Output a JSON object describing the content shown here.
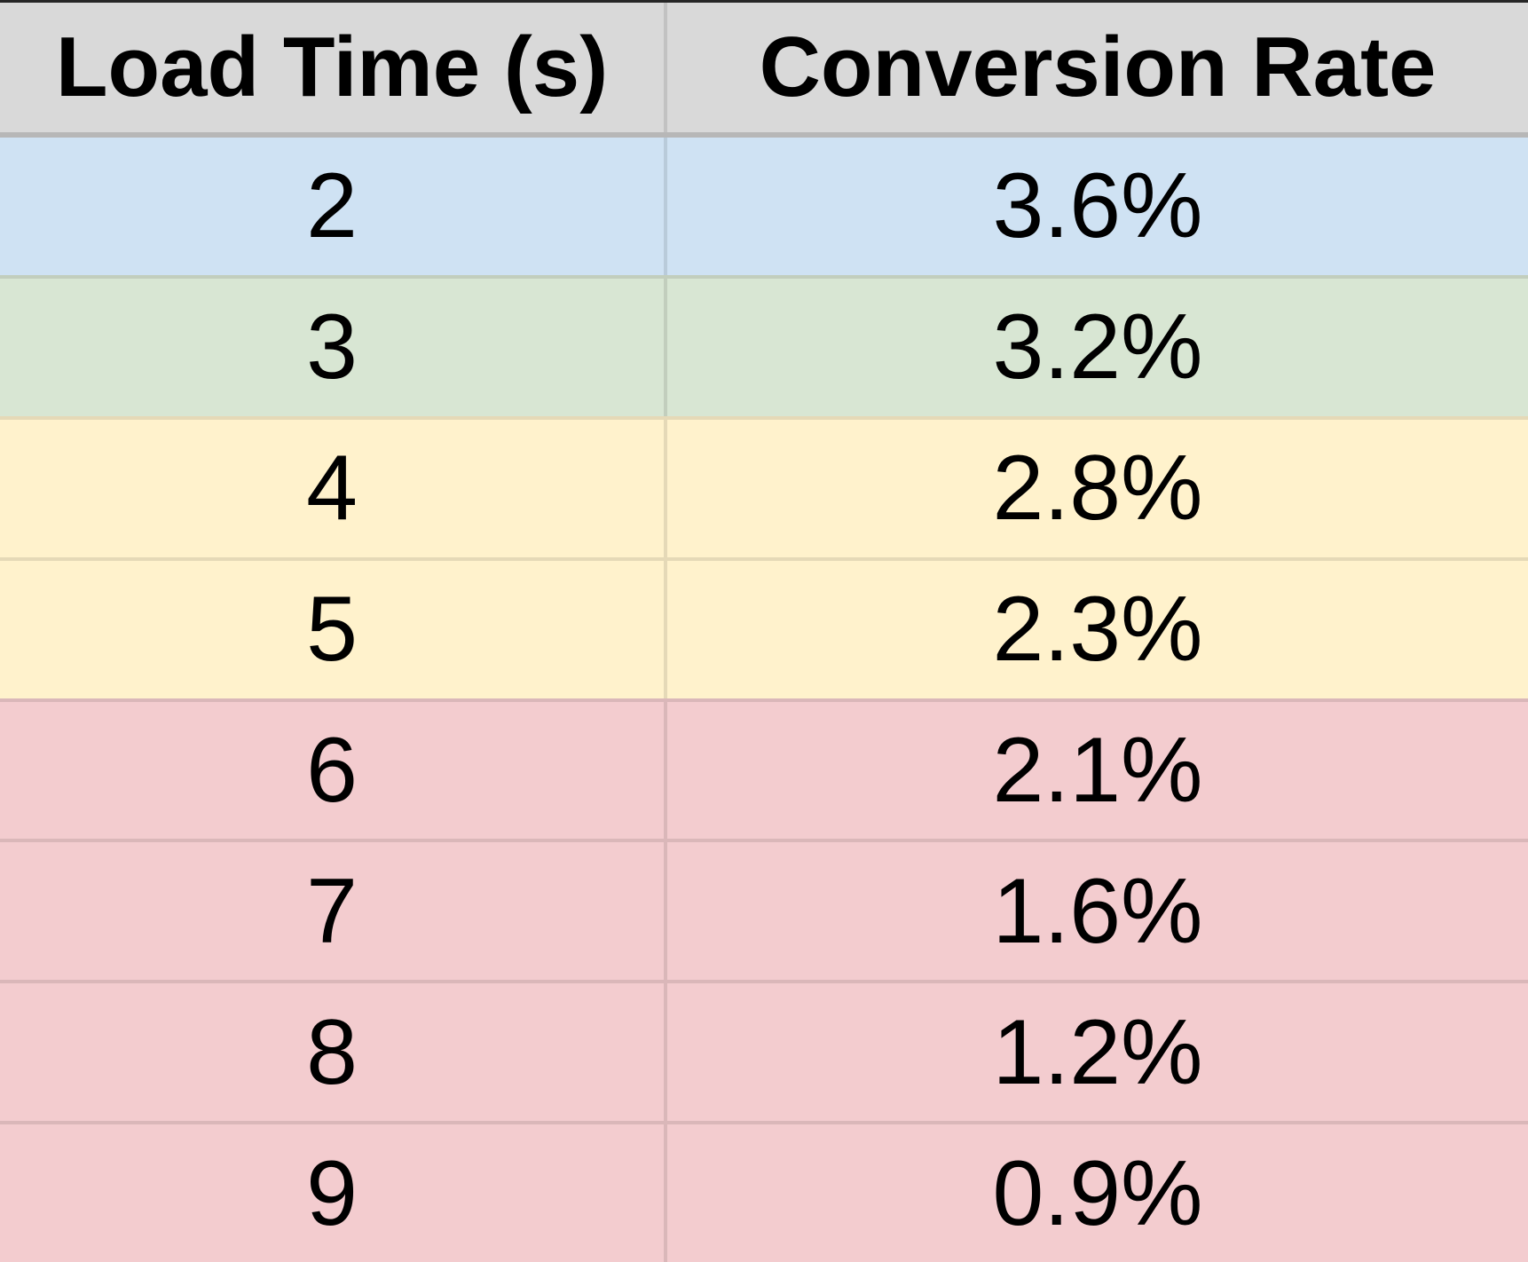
{
  "table": {
    "header": {
      "bg": "#d9d9d9",
      "cells": [
        "Load Time (s)",
        "Conversion Rate"
      ]
    },
    "rows": [
      {
        "bg": "#cfe2f3",
        "load_time": "2",
        "conversion_rate": "3.6%"
      },
      {
        "bg": "#d8e6d3",
        "load_time": "3",
        "conversion_rate": "3.2%"
      },
      {
        "bg": "#fff2cc",
        "load_time": "4",
        "conversion_rate": "2.8%"
      },
      {
        "bg": "#fff2cc",
        "load_time": "5",
        "conversion_rate": "2.3%"
      },
      {
        "bg": "#f3cccf",
        "load_time": "6",
        "conversion_rate": "2.1%"
      },
      {
        "bg": "#f3cccf",
        "load_time": "7",
        "conversion_rate": "1.6%"
      },
      {
        "bg": "#f3cccf",
        "load_time": "8",
        "conversion_rate": "1.2%"
      },
      {
        "bg": "#f3cccf",
        "load_time": "9",
        "conversion_rate": "0.9%"
      }
    ]
  },
  "colors": {
    "header_bg": "#d9d9d9",
    "row_blue": "#cfe2f3",
    "row_green": "#d8e6d3",
    "row_yellow": "#fff2cc",
    "row_pink": "#f3cccf",
    "header_rule": "#b7b7b7",
    "top_edge": "#262626",
    "text": "#000000"
  },
  "chart_data": {
    "type": "table",
    "title": "",
    "columns": [
      "Load Time (s)",
      "Conversion Rate"
    ],
    "x": [
      2,
      3,
      4,
      5,
      6,
      7,
      8,
      9
    ],
    "series": [
      {
        "name": "Conversion Rate (%)",
        "values": [
          3.6,
          3.2,
          2.8,
          2.3,
          2.1,
          1.6,
          1.2,
          0.9
        ]
      }
    ],
    "row_color_coding": {
      "2": "blue",
      "3": "green",
      "4": "yellow",
      "5": "yellow",
      "6": "pink",
      "7": "pink",
      "8": "pink",
      "9": "pink"
    },
    "grid": true,
    "legend_position": "none"
  }
}
